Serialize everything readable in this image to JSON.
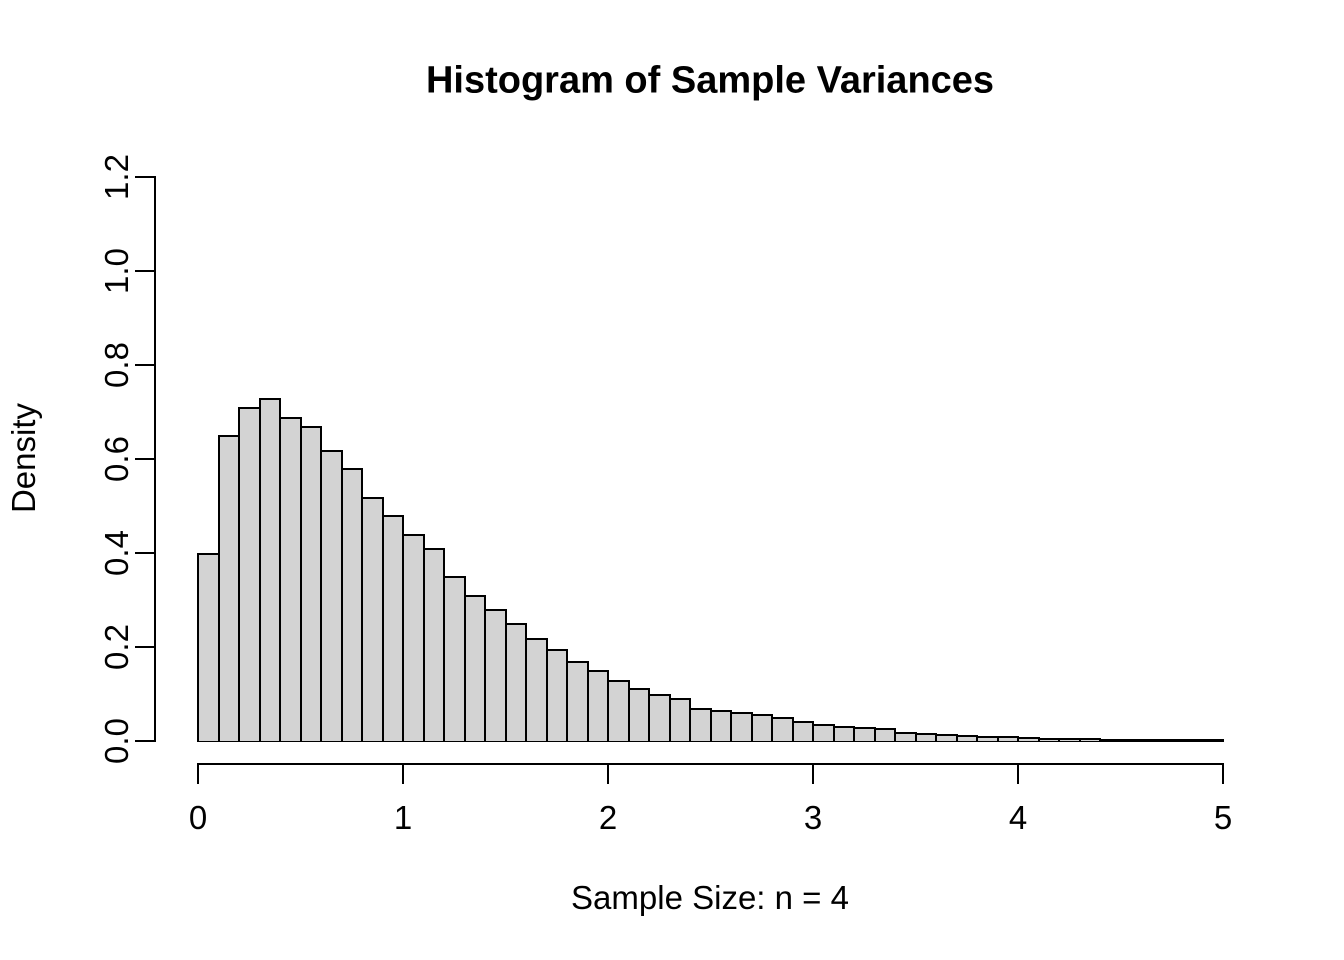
{
  "chart_data": {
    "type": "bar",
    "subtype": "histogram",
    "title": "Histogram of Sample Variances",
    "xlabel": "Sample Size: n = 4",
    "ylabel": "Density",
    "xlim": [
      0,
      5
    ],
    "ylim": [
      0,
      1.2
    ],
    "grid": false,
    "legend": "none",
    "bins": {
      "start": 0,
      "width": 0.1,
      "count": 50
    },
    "values": [
      0.4,
      0.65,
      0.71,
      0.73,
      0.69,
      0.67,
      0.62,
      0.58,
      0.52,
      0.48,
      0.44,
      0.41,
      0.35,
      0.31,
      0.28,
      0.25,
      0.22,
      0.195,
      0.17,
      0.15,
      0.13,
      0.113,
      0.1,
      0.092,
      0.071,
      0.066,
      0.062,
      0.057,
      0.051,
      0.043,
      0.036,
      0.031,
      0.03,
      0.028,
      0.02,
      0.018,
      0.014,
      0.013,
      0.011,
      0.01,
      0.008,
      0.007,
      0.006,
      0.007,
      0.004,
      0.004,
      0.002,
      0.004,
      0.002,
      0.003
    ],
    "x_ticks": {
      "labels": [
        "0",
        "1",
        "2",
        "3",
        "4",
        "5"
      ],
      "values": [
        0,
        1,
        2,
        3,
        4,
        5
      ]
    },
    "y_ticks": {
      "labels": [
        "0.0",
        "0.2",
        "0.4",
        "0.6",
        "0.8",
        "1.0",
        "1.2"
      ],
      "values": [
        0,
        0.2,
        0.4,
        0.6,
        0.8,
        1.0,
        1.2
      ]
    },
    "colors": {
      "bar_fill": "#d3d3d3",
      "bar_border": "#000000",
      "axis": "#000000",
      "text": "#000000",
      "background": "#ffffff"
    }
  }
}
